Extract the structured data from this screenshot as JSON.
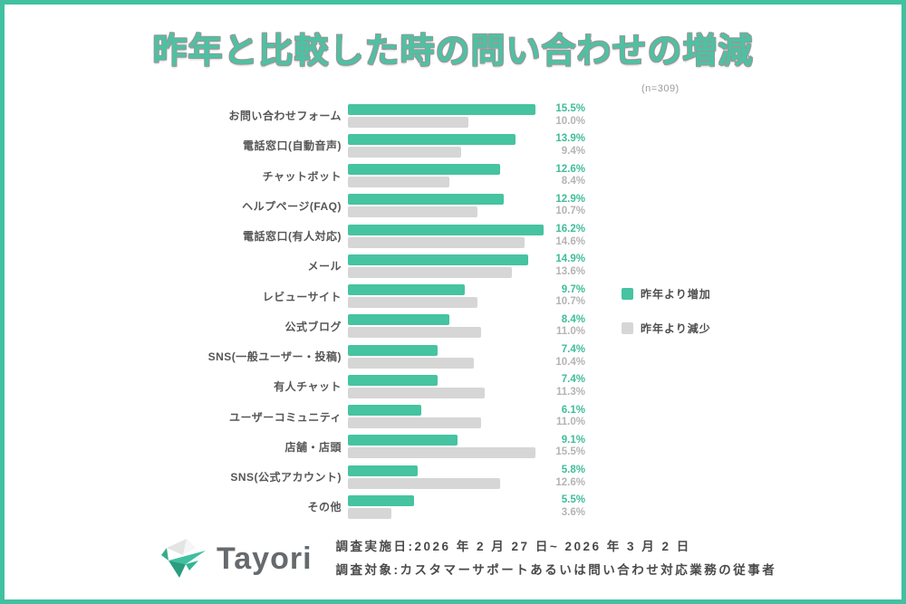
{
  "header": {
    "title": "昨年と比較した時の問い合わせの増減",
    "sample_note": "(n=309)"
  },
  "chart_data": {
    "type": "bar",
    "orientation": "horizontal",
    "title": "昨年と比較した時の問い合わせの増減",
    "sample_note": "(n=309)",
    "value_suffix": "%",
    "xlim": [
      0,
      16.5
    ],
    "grid": false,
    "legend_position": "right",
    "categories": [
      "お問い合わせフォーム",
      "電話窓口(自動音声)",
      "チャットボット",
      "ヘルプページ(FAQ)",
      "電話窓口(有人対応)",
      "メール",
      "レビューサイト",
      "公式ブログ",
      "SNS(一般ユーザー・投稿)",
      "有人チャット",
      "ユーザーコミュニティ",
      "店舗・店頭",
      "SNS(公式アカウント)",
      "その他"
    ],
    "series": [
      {
        "name": "昨年より増加",
        "color": "#46c3a0",
        "values": [
          15.5,
          13.9,
          12.6,
          12.9,
          16.2,
          14.9,
          9.7,
          8.4,
          7.4,
          7.4,
          6.1,
          9.1,
          5.8,
          5.5
        ]
      },
      {
        "name": "昨年より減少",
        "color": "#d6d6d6",
        "values": [
          10.0,
          9.4,
          8.4,
          10.7,
          14.6,
          13.6,
          10.7,
          11.0,
          10.4,
          11.3,
          11.0,
          15.5,
          12.6,
          3.6
        ]
      }
    ]
  },
  "footer": {
    "brand": "Tayori",
    "line1": "調査実施日:2026 年 2 月 27 日~ 2026 年 3 月 2 日",
    "line2": "調査対象:カスタマーサポートあるいは問い合わせ対応業務の従事者"
  },
  "colors": {
    "accent_green": "#46c3a0",
    "bar_gray": "#d6d6d6",
    "title_green": "#4cc2a3",
    "frame_border": "#42c1a0",
    "value_green": "#3fbd9a",
    "value_gray": "#b4b4b4",
    "label_gray": "#565656"
  }
}
